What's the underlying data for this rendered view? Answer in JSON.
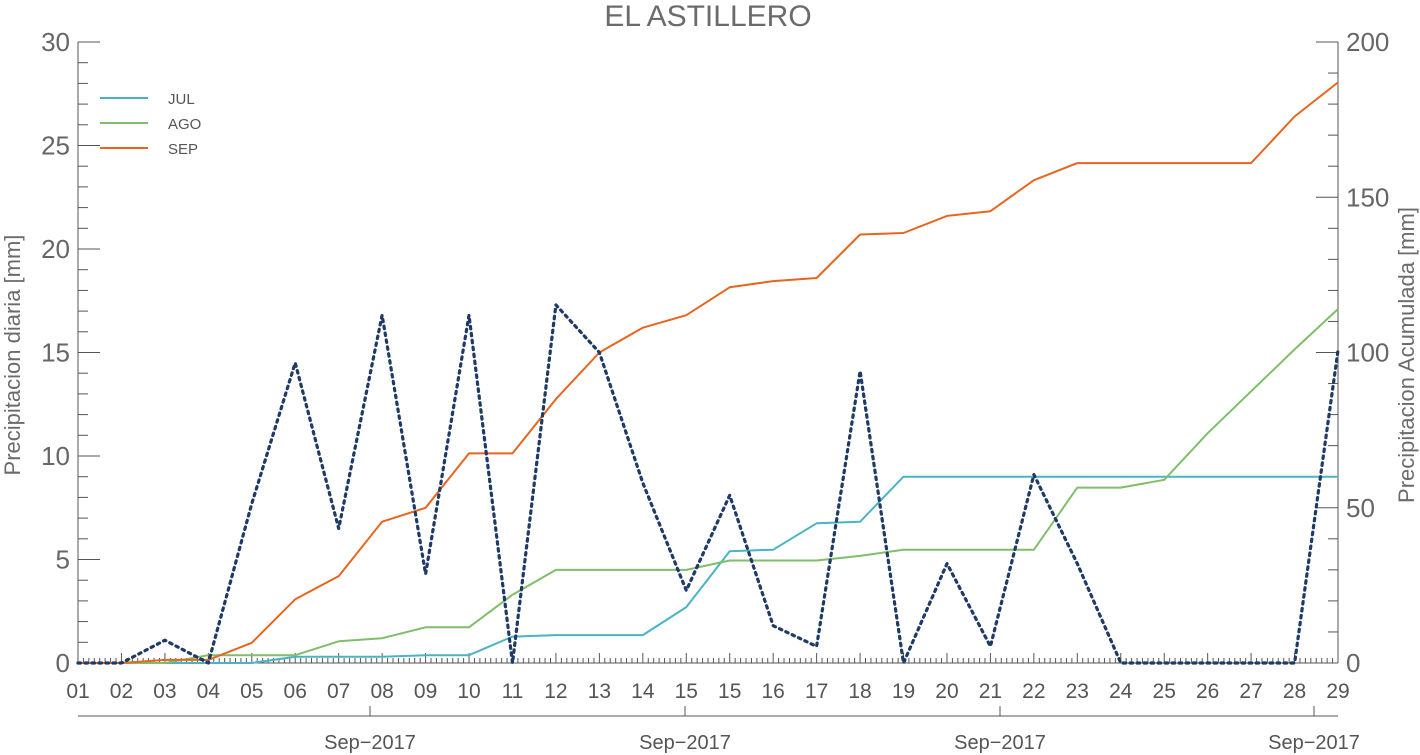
{
  "chart_data": {
    "type": "line",
    "title": "EL ASTILLERO",
    "ylabel_left": "Precipitacion diaria [mm]",
    "ylabel_right": "Precipitacion Acumulada [mm]",
    "ylim_left": [
      0,
      30
    ],
    "ylim_right": [
      0,
      200
    ],
    "yticks_left": [
      0,
      5,
      10,
      15,
      20,
      25,
      30
    ],
    "yticks_right": [
      0,
      50,
      100,
      150,
      200
    ],
    "x_tick_labels": [
      "01",
      "02",
      "03",
      "04",
      "05",
      "06",
      "07",
      "08",
      "09",
      "10",
      "11",
      "12",
      "13",
      "14",
      "15",
      "15",
      "16",
      "17",
      "18",
      "19",
      "20",
      "21",
      "22",
      "23",
      "24",
      "25",
      "26",
      "27",
      "28",
      "29"
    ],
    "secondary_x_labels": [
      "Sep−2017",
      "Sep−2017",
      "Sep−2017",
      "Sep−2017"
    ],
    "legend": {
      "placement": "top-left",
      "entries": [
        "JUL",
        "AGO",
        "SEP"
      ]
    },
    "colors": {
      "JUL": "#4ab3c4",
      "AGO": "#7fbe6a",
      "SEP": "#e8651f",
      "daily": "#1f3a66",
      "axis": "#555555"
    },
    "series": [
      {
        "name": "JUL",
        "axis": "right",
        "style": "solid",
        "values": [
          0,
          0,
          0,
          0,
          0,
          2,
          2,
          2,
          2.5,
          2.5,
          8.5,
          9,
          9,
          9,
          18,
          36,
          36.5,
          45,
          45.5,
          60,
          60,
          60,
          60,
          60,
          60,
          60,
          60,
          60,
          60,
          60
        ]
      },
      {
        "name": "AGO",
        "axis": "right",
        "style": "solid",
        "values": [
          0,
          0,
          0,
          2.5,
          2.5,
          2.5,
          7,
          8,
          11.5,
          11.5,
          22,
          30,
          30,
          30,
          30,
          33,
          33,
          33,
          34.5,
          36.5,
          36.5,
          36.5,
          36.5,
          56.5,
          56.5,
          59,
          74,
          87.5,
          101,
          114
        ]
      },
      {
        "name": "SEP",
        "axis": "right",
        "style": "solid",
        "values": [
          0,
          0,
          1,
          1,
          6.5,
          20.5,
          28,
          45.5,
          50,
          67.5,
          67.5,
          85,
          100,
          108,
          112,
          121,
          123,
          124,
          138,
          138.5,
          144,
          145.5,
          155.5,
          161,
          161,
          161,
          161,
          161,
          176,
          187
        ]
      },
      {
        "name": "",
        "axis": "left",
        "style": "dotted",
        "values": [
          0,
          0,
          1.1,
          0,
          7.7,
          14.5,
          6.5,
          16.8,
          4.3,
          16.8,
          0,
          17.3,
          15,
          8.7,
          3.5,
          8.1,
          1.8,
          0.8,
          14.1,
          0,
          4.8,
          0.8,
          9.1,
          4.8,
          0,
          0,
          0,
          0,
          0,
          15.1
        ]
      }
    ]
  }
}
